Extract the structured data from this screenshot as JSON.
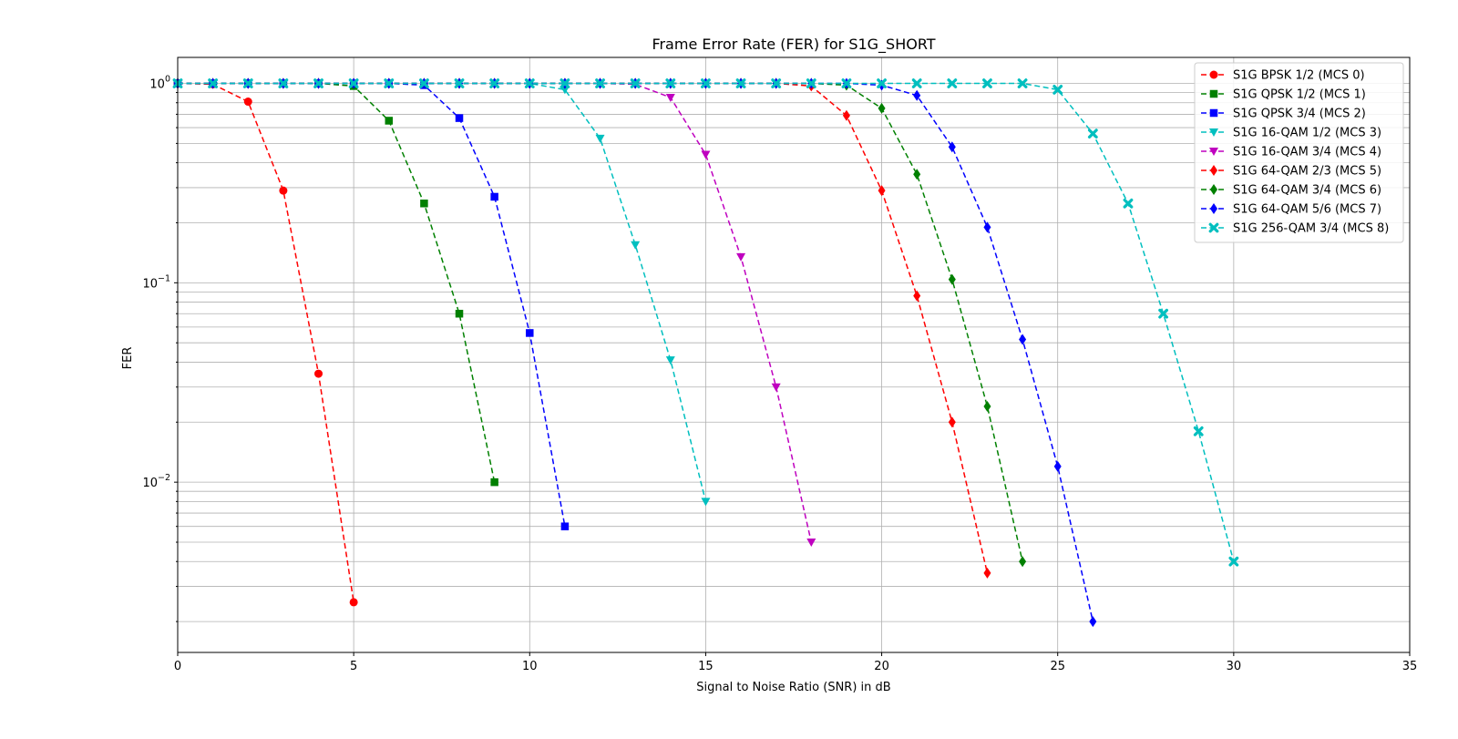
{
  "chart_data": {
    "type": "line",
    "title": "Frame Error Rate (FER) for S1G_SHORT",
    "xlabel": "Signal to Noise Ratio (SNR) in dB",
    "ylabel": "FER",
    "xlim": [
      0,
      35
    ],
    "ylim": [
      0.0014,
      1.35
    ],
    "yscale": "log",
    "grid": true,
    "legend_position": "upper-right",
    "xticks": [
      "0",
      "5",
      "10",
      "15",
      "20",
      "25",
      "30",
      "35"
    ],
    "yticks": [
      {
        "base": "10",
        "exp": "0"
      },
      {
        "base": "10",
        "exp": "−1"
      },
      {
        "base": "10",
        "exp": "−2"
      }
    ],
    "series": [
      {
        "name": "S1G BPSK 1/2 (MCS 0)",
        "color": "#ff0000",
        "marker": "circle",
        "x": [
          0,
          1,
          2,
          3,
          4,
          5
        ],
        "y": [
          1.0,
          0.99,
          0.81,
          0.29,
          0.035,
          0.0025
        ]
      },
      {
        "name": "S1G QPSK 1/2 (MCS 1)",
        "color": "#008000",
        "marker": "square",
        "x": [
          0,
          1,
          2,
          3,
          4,
          5,
          6,
          7,
          8,
          9
        ],
        "y": [
          1.0,
          1.0,
          1.0,
          1.0,
          1.0,
          0.97,
          0.65,
          0.25,
          0.07,
          0.01
        ]
      },
      {
        "name": "S1G QPSK 3/4 (MCS 2)",
        "color": "#0000ff",
        "marker": "square",
        "x": [
          0,
          1,
          2,
          3,
          4,
          5,
          6,
          7,
          8,
          9,
          10,
          11
        ],
        "y": [
          1.0,
          1.0,
          1.0,
          1.0,
          1.0,
          1.0,
          1.0,
          0.98,
          0.67,
          0.27,
          0.056,
          0.006
        ]
      },
      {
        "name": "S1G 16-QAM 1/2 (MCS 3)",
        "color": "#00bfbf",
        "marker": "triangle-down",
        "x": [
          0,
          1,
          2,
          3,
          4,
          5,
          6,
          7,
          8,
          9,
          10,
          11,
          12,
          13,
          14,
          15
        ],
        "y": [
          1.0,
          1.0,
          1.0,
          1.0,
          1.0,
          1.0,
          1.0,
          1.0,
          1.0,
          1.0,
          1.0,
          0.93,
          0.53,
          0.155,
          0.041,
          0.008
        ]
      },
      {
        "name": "S1G 16-QAM 3/4 (MCS 4)",
        "color": "#bf00bf",
        "marker": "triangle-down",
        "x": [
          0,
          1,
          2,
          3,
          4,
          5,
          6,
          7,
          8,
          9,
          10,
          11,
          12,
          13,
          14,
          15,
          16,
          17,
          18
        ],
        "y": [
          1.0,
          1.0,
          1.0,
          1.0,
          1.0,
          1.0,
          1.0,
          1.0,
          1.0,
          1.0,
          1.0,
          1.0,
          1.0,
          0.99,
          0.85,
          0.44,
          0.135,
          0.03,
          0.005
        ]
      },
      {
        "name": "S1G 64-QAM 2/3 (MCS 5)",
        "color": "#ff0000",
        "marker": "diamond",
        "x": [
          0,
          1,
          2,
          3,
          4,
          5,
          6,
          7,
          8,
          9,
          10,
          11,
          12,
          13,
          14,
          15,
          16,
          17,
          18,
          19,
          20,
          21,
          22,
          23
        ],
        "y": [
          1.0,
          1.0,
          1.0,
          1.0,
          1.0,
          1.0,
          1.0,
          1.0,
          1.0,
          1.0,
          1.0,
          1.0,
          1.0,
          1.0,
          1.0,
          1.0,
          1.0,
          1.0,
          0.97,
          0.69,
          0.29,
          0.086,
          0.02,
          0.0035
        ]
      },
      {
        "name": "S1G 64-QAM 3/4 (MCS 6)",
        "color": "#008000",
        "marker": "diamond",
        "x": [
          0,
          1,
          2,
          3,
          4,
          5,
          6,
          7,
          8,
          9,
          10,
          11,
          12,
          13,
          14,
          15,
          16,
          17,
          18,
          19,
          20,
          21,
          22,
          23,
          24
        ],
        "y": [
          1.0,
          1.0,
          1.0,
          1.0,
          1.0,
          1.0,
          1.0,
          1.0,
          1.0,
          1.0,
          1.0,
          1.0,
          1.0,
          1.0,
          1.0,
          1.0,
          1.0,
          1.0,
          1.0,
          0.98,
          0.75,
          0.35,
          0.104,
          0.024,
          0.004
        ]
      },
      {
        "name": "S1G 64-QAM 5/6 (MCS 7)",
        "color": "#0000ff",
        "marker": "diamond",
        "x": [
          0,
          1,
          2,
          3,
          4,
          5,
          6,
          7,
          8,
          9,
          10,
          11,
          12,
          13,
          14,
          15,
          16,
          17,
          18,
          19,
          20,
          21,
          22,
          23,
          24,
          25,
          26
        ],
        "y": [
          1.0,
          1.0,
          1.0,
          1.0,
          1.0,
          1.0,
          1.0,
          1.0,
          1.0,
          1.0,
          1.0,
          1.0,
          1.0,
          1.0,
          1.0,
          1.0,
          1.0,
          1.0,
          1.0,
          1.0,
          0.98,
          0.87,
          0.48,
          0.19,
          0.052,
          0.012,
          0.002
        ]
      },
      {
        "name": "S1G 256-QAM 3/4 (MCS 8)",
        "color": "#00bfbf",
        "marker": "x",
        "x": [
          0,
          1,
          2,
          3,
          4,
          5,
          6,
          7,
          8,
          9,
          10,
          11,
          12,
          13,
          14,
          15,
          16,
          17,
          18,
          19,
          20,
          21,
          22,
          23,
          24,
          25,
          26,
          27,
          28,
          29,
          30
        ],
        "y": [
          1.0,
          1.0,
          1.0,
          1.0,
          1.0,
          1.0,
          1.0,
          1.0,
          1.0,
          1.0,
          1.0,
          1.0,
          1.0,
          1.0,
          1.0,
          1.0,
          1.0,
          1.0,
          1.0,
          1.0,
          1.0,
          1.0,
          1.0,
          1.0,
          1.0,
          0.93,
          0.56,
          0.25,
          0.07,
          0.018,
          0.004
        ]
      }
    ]
  }
}
